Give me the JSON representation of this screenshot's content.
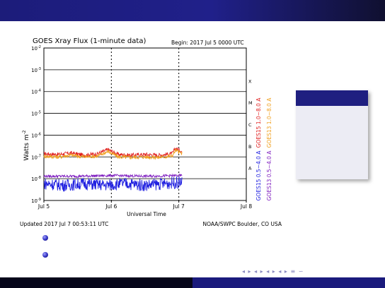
{
  "plot": {
    "title": "GOES Xray Flux (1-minute data)",
    "begin": "Begin:  2017 Jul 5 0000 UTC",
    "ylabel": "Watts m",
    "ylabel_sup": "-2",
    "xlabel": "Universal Time",
    "updated": "Updated 2017 Jul  7 00:53:11 UTC",
    "credit": "NOAA/SWPC Boulder, CO USA",
    "y_ticks": [
      {
        "base": "10",
        "exp": "-2"
      },
      {
        "base": "10",
        "exp": "-3"
      },
      {
        "base": "10",
        "exp": "-4"
      },
      {
        "base": "10",
        "exp": "-5"
      },
      {
        "base": "10",
        "exp": "-6"
      },
      {
        "base": "10",
        "exp": "-7"
      },
      {
        "base": "10",
        "exp": "-8"
      },
      {
        "base": "10",
        "exp": "-9"
      }
    ],
    "x_ticks": [
      "Jul 5",
      "Jul 6",
      "Jul 7",
      "Jul 8"
    ],
    "flare_classes": [
      "X",
      "M",
      "C",
      "B",
      "A"
    ],
    "legend": [
      {
        "label": "GOES15 1.0−8.0 A",
        "color": "#e02020"
      },
      {
        "label": "GOES13 1.0−8.0 A",
        "color": "#f0a020"
      },
      {
        "label": "GOES15 0.5−4.0 A",
        "color": "#2020e0"
      },
      {
        "label": "GOES13 0.5−4.0 A",
        "color": "#8020c0"
      }
    ]
  },
  "chart_data": {
    "type": "line",
    "title": "GOES Xray Flux (1-minute data)",
    "xlabel": "Universal Time",
    "ylabel": "Watts m-2",
    "y_scale": "log",
    "ylim": [
      1e-09,
      0.01
    ],
    "x_ticks": [
      "Jul 5",
      "Jul 6",
      "Jul 7",
      "Jul 8"
    ],
    "x_days": [
      0,
      2.05
    ],
    "series": [
      {
        "name": "GOES15 1.0-8.0 A",
        "color": "#e02020",
        "points": [
          [
            0,
            1.4e-07
          ],
          [
            0.2,
            1.3e-07
          ],
          [
            0.4,
            1.5e-07
          ],
          [
            0.6,
            1.2e-07
          ],
          [
            0.8,
            1.4e-07
          ],
          [
            0.95,
            2.2e-07
          ],
          [
            1.1,
            1.3e-07
          ],
          [
            1.3,
            1.2e-07
          ],
          [
            1.5,
            1.3e-07
          ],
          [
            1.7,
            1.2e-07
          ],
          [
            1.9,
            1.4e-07
          ],
          [
            1.95,
            2.5e-07
          ],
          [
            2.05,
            1.8e-07
          ]
        ]
      },
      {
        "name": "GOES13 1.0-8.0 A",
        "color": "#f0a020",
        "points": [
          [
            0,
            1.1e-07
          ],
          [
            0.2,
            1e-07
          ],
          [
            0.4,
            1.2e-07
          ],
          [
            0.6,
            1e-07
          ],
          [
            0.8,
            1.1e-07
          ],
          [
            0.95,
            1.8e-07
          ],
          [
            1.1,
            1e-07
          ],
          [
            1.3,
            9.5e-08
          ],
          [
            1.5,
            1e-07
          ],
          [
            1.7,
            9.5e-08
          ],
          [
            1.9,
            1.1e-07
          ],
          [
            1.95,
            2e-07
          ],
          [
            2.05,
            1.4e-07
          ]
        ]
      },
      {
        "name": "GOES13 0.5-4.0 A",
        "color": "#8020c0",
        "points": [
          [
            0,
            1.3e-08
          ],
          [
            0.5,
            1.3e-08
          ],
          [
            1.0,
            1.4e-08
          ],
          [
            1.5,
            1.3e-08
          ],
          [
            2.05,
            1.4e-08
          ]
        ]
      },
      {
        "name": "GOES15 0.5-4.0 A",
        "color": "#2020e0",
        "points": [
          [
            0,
            6e-09
          ],
          [
            0.3,
            5e-09
          ],
          [
            0.6,
            6e-09
          ],
          [
            0.9,
            5e-09
          ],
          [
            1.2,
            6e-09
          ],
          [
            1.5,
            5e-09
          ],
          [
            1.8,
            6e-09
          ],
          [
            2.05,
            7e-09
          ]
        ]
      }
    ]
  },
  "nav_symbols": "◂ ▸ ◂ ▸ ◂ ▸ ◂ ▸ ≡ ∽",
  "icons": [
    "bullet-icon",
    "bullet-icon"
  ]
}
